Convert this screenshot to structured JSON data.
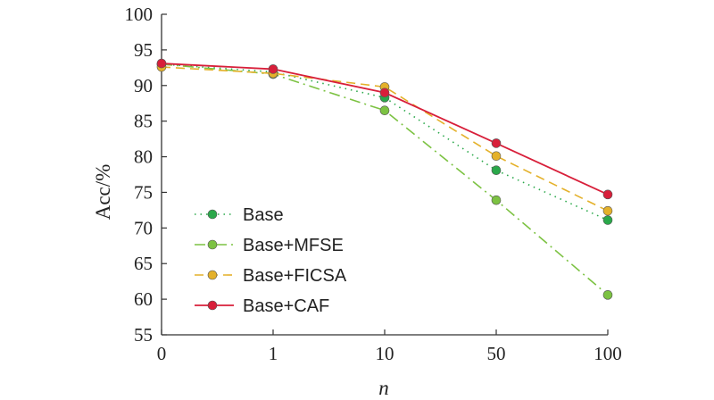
{
  "chart_data": {
    "type": "line",
    "xlabel": "n",
    "ylabel": "Acc/%",
    "categories": [
      "0",
      "1",
      "10",
      "50",
      "100"
    ],
    "ylim": [
      55,
      100
    ],
    "yticks": [
      55,
      60,
      65,
      70,
      75,
      80,
      85,
      90,
      95,
      100
    ],
    "grid": false,
    "legend_position": "lower-left",
    "series": [
      {
        "name": "Base",
        "values": [
          93.0,
          91.9,
          88.3,
          78.1,
          71.1
        ],
        "color": "#2aa84a",
        "dash": "dotted"
      },
      {
        "name": "Base+MFSE",
        "values": [
          93.0,
          91.6,
          86.5,
          73.9,
          60.6
        ],
        "color": "#7cc242",
        "dash": "dashdot"
      },
      {
        "name": "Base+FICSA",
        "values": [
          92.6,
          91.7,
          89.8,
          80.1,
          72.4
        ],
        "color": "#e4b12a",
        "dash": "dashed"
      },
      {
        "name": "Base+CAF",
        "values": [
          93.1,
          92.3,
          89.0,
          81.9,
          74.7
        ],
        "color": "#d81f3a",
        "dash": "solid"
      }
    ]
  }
}
